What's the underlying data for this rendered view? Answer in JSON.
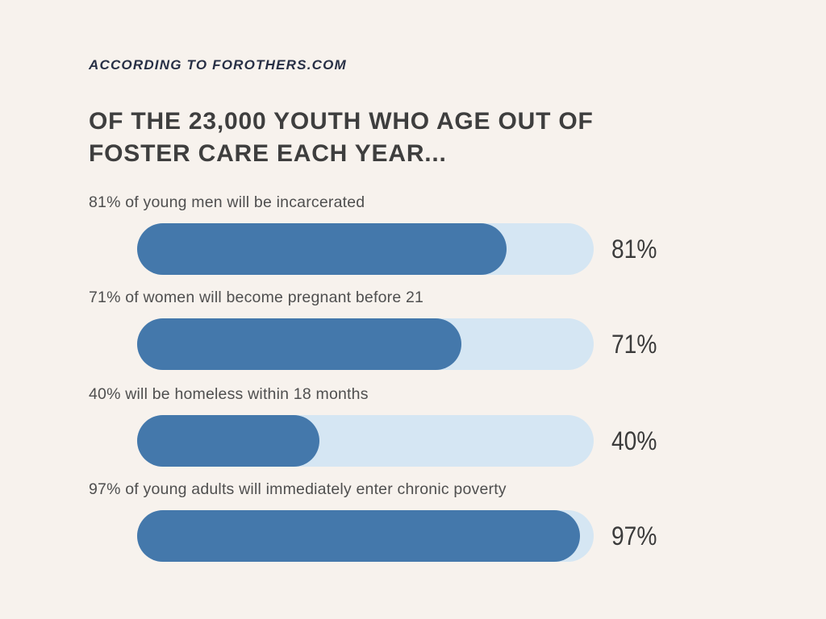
{
  "header": {
    "attribution": "ACCORDING TO FOROTHERS.COM",
    "title": "OF THE 23,000 YOUTH WHO AGE OUT OF FOSTER CARE EACH YEAR..."
  },
  "colors": {
    "background": "#f7f2ed",
    "bar_fill": "#4478ab",
    "bar_track": "#d5e6f3",
    "attribution_text": "#272f45",
    "title_text": "#3e3e3e",
    "label_text": "#4f4f4f",
    "value_text": "#3b3b3b"
  },
  "chart_data": {
    "type": "bar",
    "orientation": "horizontal",
    "title": "OF THE 23,000 YOUTH WHO AGE OUT OF FOSTER CARE EACH YEAR...",
    "subtitle": "ACCORDING TO FOROTHERS.COM",
    "xlim": [
      0,
      100
    ],
    "grid": false,
    "legend": false,
    "categories": [
      "81% of young men will be incarcerated",
      "71% of women will become pregnant before 21",
      "40% will be homeless within 18 months",
      "97% of young adults will immediately enter chronic poverty"
    ],
    "values": [
      81,
      71,
      40,
      97
    ],
    "rows": [
      {
        "label": "81% of young men will be incarcerated",
        "value": 81,
        "value_label": "81%"
      },
      {
        "label": "71% of women will become pregnant before 21",
        "value": 71,
        "value_label": "71%"
      },
      {
        "label": "40% will be homeless within 18 months",
        "value": 40,
        "value_label": "40%"
      },
      {
        "label": "97% of young adults will immediately enter chronic poverty",
        "value": 97,
        "value_label": "97%"
      }
    ]
  }
}
